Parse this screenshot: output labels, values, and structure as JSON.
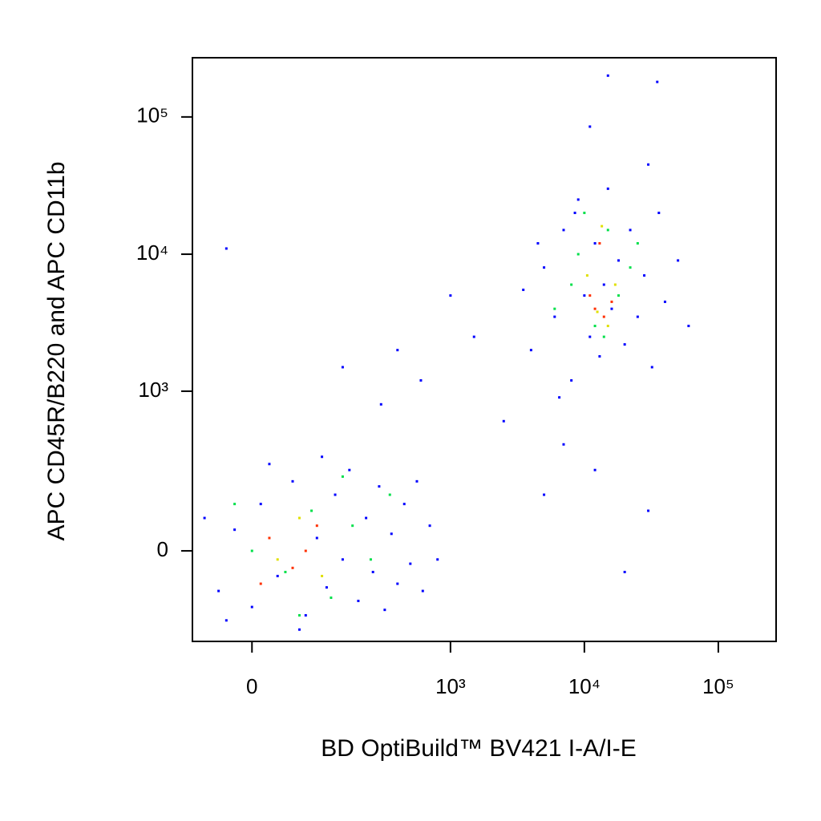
{
  "chart_data": {
    "type": "scatter",
    "scale": "biexponential",
    "x_label": "BD OptiBuild™ BV421 I-A/I-E",
    "y_label": "APC CD45R/B220 and APC CD11b",
    "xlim": [
      -80,
      270000
    ],
    "ylim": [
      -300,
      270000
    ],
    "xticks": [
      0,
      {
        "value": 1000,
        "label": "10³"
      },
      {
        "value": 10000,
        "label": "10⁴"
      },
      {
        "value": 100000,
        "label": "10⁵"
      }
    ],
    "yticks": [
      0,
      {
        "value": 1000,
        "label": "10³"
      },
      {
        "value": 10000,
        "label": "10⁴"
      },
      {
        "value": 100000,
        "label": "10⁵"
      }
    ],
    "series": [
      {
        "color": "#0000ff",
        "x": [
          -40,
          -20,
          0,
          10,
          30,
          50,
          70,
          90,
          110,
          130,
          150,
          170,
          200,
          230,
          260,
          290,
          320,
          360,
          400,
          450,
          500,
          560,
          620,
          700,
          800,
          -60,
          -30,
          20,
          60,
          100,
          300,
          150,
          600,
          1500,
          2500,
          1000,
          400,
          5000,
          20000,
          30000,
          12000,
          7000,
          -30,
          4000,
          5000,
          6000,
          7000,
          8000,
          9000,
          10000,
          11000,
          12000,
          13000,
          14000,
          15000,
          16000,
          18000,
          20000,
          22000,
          25000,
          28000,
          32000,
          36000,
          40000,
          50000,
          60000,
          3500,
          4500,
          6500,
          8500,
          30000,
          15000,
          35000,
          11000
        ],
        "y": [
          -100,
          50,
          -150,
          120,
          -60,
          200,
          -180,
          30,
          -90,
          150,
          -20,
          250,
          -130,
          80,
          -50,
          180,
          -160,
          40,
          -80,
          120,
          -30,
          200,
          -100,
          60,
          -20,
          80,
          -200,
          280,
          -240,
          320,
          800,
          1500,
          1200,
          2500,
          600,
          5000,
          2000,
          150,
          -50,
          100,
          250,
          400,
          11000,
          2000,
          8000,
          3500,
          15000,
          1200,
          25000,
          5000,
          2500,
          12000,
          1800,
          6000,
          30000,
          4000,
          9000,
          2200,
          15000,
          3500,
          7000,
          1500,
          20000,
          4500,
          9000,
          3000,
          5500,
          12000,
          900,
          20000,
          45000,
          200000,
          180000,
          85000
        ]
      },
      {
        "color": "#00e04a",
        "x": [
          0,
          40,
          80,
          120,
          180,
          250,
          350,
          -20,
          60,
          150,
          6000,
          9000,
          12000,
          15000,
          18000,
          22000,
          10000,
          14000,
          25000,
          8000
        ],
        "y": [
          0,
          -50,
          100,
          -120,
          60,
          -20,
          150,
          120,
          -180,
          220,
          4000,
          10000,
          3000,
          15000,
          5000,
          8000,
          20000,
          2500,
          12000,
          6000
        ]
      },
      {
        "color": "#e0e000",
        "x": [
          30,
          60,
          100,
          12500,
          15000,
          10500,
          17000,
          13500
        ],
        "y": [
          -20,
          80,
          -60,
          3800,
          3000,
          7000,
          6000,
          16000
        ]
      },
      {
        "color": "#ff3000",
        "x": [
          20,
          50,
          90,
          10,
          70,
          12000,
          14000,
          11000,
          13000,
          16000
        ],
        "y": [
          30,
          -40,
          60,
          -80,
          0,
          4000,
          3500,
          5000,
          12000,
          4500
        ]
      }
    ]
  }
}
